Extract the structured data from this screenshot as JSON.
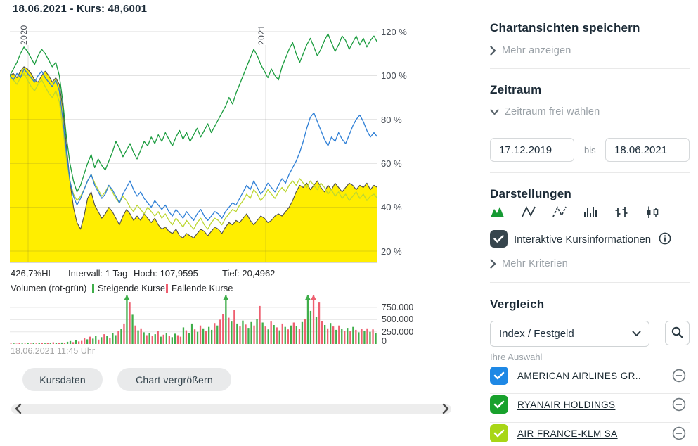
{
  "header": {
    "title": "18.06.2021  - Kurs: 48,6001"
  },
  "chart": {
    "y_ticks": [
      "120 %",
      "100 %",
      "80 %",
      "60 %",
      "40 %",
      "20 %"
    ],
    "year_labels": [
      "2020",
      "2021"
    ],
    "stats": {
      "range": "426,7%HL",
      "interval": "Intervall: 1 Tag",
      "high": "Hoch: 107,9595",
      "low": "Tief: 20,4962"
    },
    "volume_title": "Volumen (rot-grün)",
    "volume_legend": {
      "up": "Steigende Kurse",
      "down": "Fallende Kurse"
    },
    "volume_ticks": [
      "750.000",
      "500.000",
      "250.000",
      "0"
    ],
    "timestamp": "18.06.2021 11:45 Uhr",
    "buttons": {
      "kursdaten": "Kursdaten",
      "enlarge": "Chart vergrößern"
    }
  },
  "chart_data": {
    "type": "line",
    "title": "18.06.2021 - Kurs: 48,6001",
    "x_range": [
      "17.12.2019",
      "18.06.2021"
    ],
    "y_axis": {
      "unit": "%",
      "ticks": [
        20,
        40,
        60,
        80,
        100,
        120
      ],
      "range": [
        14,
        124
      ]
    },
    "year_gridlines": [
      {
        "label": "2020",
        "px": 40
      },
      {
        "label": "2021",
        "px": 378
      }
    ],
    "series": [
      {
        "name": "main",
        "style": "area",
        "color": "#ffee00",
        "line_color": "#4d4d4d",
        "values": [
          100,
          101,
          99,
          102,
          104,
          103,
          101,
          98,
          97,
          100,
          102,
          100,
          97,
          99,
          96,
          85,
          68,
          52,
          40,
          33,
          30,
          36,
          44,
          47,
          41,
          38,
          35,
          37,
          40,
          38,
          35,
          32,
          36,
          39,
          37,
          34,
          36,
          34,
          37,
          35,
          33,
          35,
          32,
          30,
          31,
          29,
          28,
          30,
          27,
          26,
          28,
          27,
          26,
          28,
          30,
          29,
          27,
          29,
          31,
          30,
          28,
          31,
          33,
          32,
          34,
          33,
          35,
          37,
          34,
          32,
          34,
          36,
          35,
          33,
          34,
          36,
          37,
          36,
          38,
          40,
          43,
          47,
          50,
          49,
          51,
          48,
          50,
          52,
          49,
          47,
          50,
          48,
          51,
          49,
          47,
          49,
          51,
          50,
          48,
          50,
          49,
          51,
          48,
          50,
          49
        ]
      },
      {
        "name": "RYANAIR HOLDINGS",
        "style": "line",
        "color": "#1a9c3e",
        "values": [
          100,
          103,
          106,
          110,
          113,
          111,
          108,
          105,
          109,
          112,
          110,
          107,
          104,
          106,
          100,
          88,
          72,
          60,
          52,
          47,
          50,
          55,
          60,
          64,
          58,
          62,
          59,
          57,
          61,
          65,
          70,
          67,
          63,
          66,
          69,
          65,
          62,
          66,
          70,
          68,
          72,
          69,
          73,
          70,
          74,
          71,
          68,
          72,
          75,
          71,
          74,
          70,
          73,
          76,
          72,
          75,
          78,
          74,
          77,
          80,
          83,
          86,
          90,
          87,
          92,
          96,
          100,
          104,
          108,
          112,
          109,
          105,
          102,
          99,
          103,
          100,
          98,
          104,
          108,
          112,
          115,
          110,
          106,
          110,
          114,
          117,
          113,
          109,
          112,
          116,
          119,
          115,
          111,
          114,
          118,
          116,
          112,
          115,
          118,
          114,
          117,
          113,
          116,
          118,
          115
        ]
      },
      {
        "name": "AMERICAN AIRLINES GR..",
        "style": "line",
        "color": "#2e7fd6",
        "values": [
          100,
          98,
          101,
          99,
          103,
          101,
          99,
          97,
          100,
          102,
          99,
          97,
          95,
          98,
          93,
          80,
          65,
          52,
          45,
          41,
          44,
          48,
          52,
          55,
          50,
          47,
          44,
          46,
          50,
          48,
          45,
          42,
          46,
          49,
          52,
          48,
          45,
          47,
          44,
          42,
          40,
          43,
          41,
          39,
          41,
          38,
          36,
          39,
          37,
          35,
          38,
          36,
          34,
          37,
          39,
          36,
          34,
          36,
          38,
          37,
          35,
          38,
          40,
          42,
          41,
          44,
          47,
          50,
          48,
          52,
          49,
          46,
          48,
          51,
          49,
          47,
          50,
          53,
          51,
          55,
          58,
          61,
          65,
          70,
          76,
          81,
          83,
          79,
          75,
          71,
          68,
          72,
          70,
          74,
          71,
          69,
          73,
          77,
          80,
          82,
          79,
          75,
          72,
          74,
          72
        ]
      },
      {
        "name": "AIR FRANCE-KLM SA",
        "style": "line",
        "color": "#bcd732",
        "values": [
          100,
          98,
          96,
          99,
          101,
          98,
          95,
          93,
          96,
          98,
          95,
          92,
          90,
          93,
          88,
          76,
          62,
          52,
          46,
          43,
          45,
          48,
          52,
          55,
          51,
          48,
          45,
          47,
          50,
          47,
          44,
          42,
          45,
          43,
          40,
          38,
          41,
          39,
          37,
          40,
          38,
          36,
          38,
          35,
          37,
          34,
          32,
          35,
          33,
          31,
          34,
          32,
          30,
          33,
          35,
          32,
          30,
          33,
          35,
          34,
          32,
          35,
          37,
          39,
          38,
          41,
          43,
          46,
          44,
          48,
          46,
          43,
          45,
          48,
          46,
          44,
          47,
          49,
          47,
          50,
          52,
          50,
          53,
          51,
          49,
          52,
          50,
          48,
          51,
          49,
          46,
          48,
          45,
          47,
          44,
          46,
          43,
          45,
          47,
          44,
          46,
          43,
          45,
          46,
          44
        ]
      }
    ],
    "volume": {
      "type": "bar",
      "y_ticks": [
        0,
        250000,
        500000,
        750000
      ],
      "max": 1000000,
      "up_color": "#3fae4a",
      "down_color": "#ee5f70",
      "values_thousands": [
        8,
        12,
        6,
        15,
        10,
        7,
        18,
        9,
        14,
        11,
        16,
        22,
        12,
        28,
        18,
        34,
        24,
        15,
        30,
        20,
        45,
        60,
        38,
        75,
        52,
        64,
        120,
        95,
        150,
        110,
        170,
        90,
        140,
        200,
        160,
        130,
        220,
        180,
        260,
        310,
        420,
        1000,
        850,
        600,
        380,
        280,
        320,
        240,
        180,
        220,
        160,
        200,
        260,
        150,
        190,
        230,
        170,
        140,
        210,
        180,
        150,
        340,
        280,
        220,
        420,
        300,
        250,
        380,
        320,
        270,
        350,
        290,
        430,
        380,
        500,
        620,
        1000,
        540,
        460,
        700,
        420,
        360,
        480,
        400,
        330,
        450,
        380,
        520,
        780,
        440,
        360,
        300,
        460,
        390,
        340,
        280,
        420,
        350,
        300,
        380,
        440,
        370,
        310,
        450,
        520,
        1000,
        680,
        1000,
        560,
        850,
        470,
        390,
        320,
        430,
        360,
        290,
        380,
        310,
        260,
        330,
        270,
        350,
        290,
        240,
        310,
        260,
        320,
        250,
        300,
        230
      ],
      "dirs_parts": [
        "rgrrgrgrgr",
        "grgrgrgrgr",
        "ggrgrr",
        "rgrgg",
        "rgrgr",
        "ggrgr",
        "g",
        "rgr",
        "grgrg",
        "rgrgr",
        "grggr",
        "rgrgg",
        "rgrgr",
        "ggrgr",
        "r",
        "g",
        "rgr",
        "grgrg",
        "grgrg",
        "rgrgr",
        "grgrg",
        "rgrgr",
        "g",
        "g",
        "r",
        "gr",
        "rgrgr",
        "grgrg",
        "rgrgr",
        "grgrg"
      ]
    }
  },
  "sidebar": {
    "save": {
      "title": "Chartansichten speichern",
      "more": "Mehr anzeigen"
    },
    "zeitraum": {
      "title": "Zeitraum",
      "free": "Zeitraum frei wählen",
      "from": "17.12.2019",
      "bis_label": "bis",
      "to": "18.06.2021"
    },
    "darstellungen": {
      "title": "Darstellungen",
      "active_color": "#169a33",
      "checkbox_label": "Interaktive Kursinformationen",
      "more": "Mehr Kriterien"
    },
    "vergleich": {
      "title": "Vergleich",
      "select_value": "Index / Festgeld",
      "selection_title": "Ihre Auswahl",
      "items": [
        {
          "label": "AMERICAN AIRLINES GR..",
          "color": "#1e88e5"
        },
        {
          "label": "RYANAIR HOLDINGS",
          "color": "#18a12c"
        },
        {
          "label": "AIR FRANCE-KLM SA",
          "color": "#a8d616"
        }
      ]
    }
  }
}
